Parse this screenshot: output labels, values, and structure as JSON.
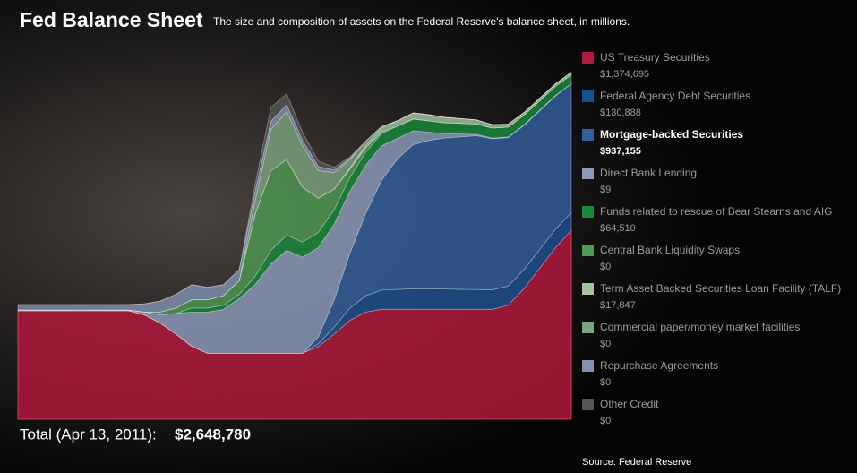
{
  "chart_data": {
    "type": "stacked_area",
    "title": "Fed Balance Sheet",
    "subtitle": "The size and composition of assets on the Federal Reserve's balance sheet, in millions.",
    "total_label": "Total (Apr 13, 2011):",
    "total": "$2,648,780",
    "source": "Source: Federal Reserve",
    "ylim": [
      0,
      2700000
    ],
    "highlight_index": 2,
    "categories": [
      null,
      null,
      null,
      null,
      null,
      null,
      null,
      null,
      null,
      null,
      null,
      null,
      null,
      null,
      null,
      null,
      null,
      null,
      null,
      null,
      null,
      null,
      null,
      null,
      null,
      null,
      null,
      null,
      null,
      null,
      null,
      null,
      null,
      null,
      null,
      null
    ],
    "series": [
      {
        "name": "US Treasury Securities",
        "value_label": "$1,374,695",
        "color": "#b3193c",
        "values": [
          790000,
          790000,
          790000,
          790000,
          790000,
          790000,
          790000,
          790000,
          760000,
          700000,
          620000,
          530000,
          480000,
          480000,
          480000,
          480000,
          480000,
          480000,
          480000,
          530000,
          620000,
          720000,
          780000,
          800000,
          800000,
          800000,
          800000,
          800000,
          800000,
          800000,
          800000,
          830000,
          950000,
          1100000,
          1250000,
          1374695
        ]
      },
      {
        "name": "Federal Agency Debt Securities",
        "value_label": "$130,888",
        "color": "#1d4f90",
        "values": [
          0,
          0,
          0,
          0,
          0,
          0,
          0,
          0,
          0,
          0,
          0,
          0,
          0,
          0,
          0,
          0,
          0,
          0,
          0,
          20000,
          50000,
          90000,
          120000,
          140000,
          145000,
          150000,
          150000,
          148000,
          146000,
          144000,
          142000,
          140000,
          138000,
          136000,
          133000,
          130888
        ]
      },
      {
        "name": "Mortgage-backed Securities",
        "value_label": "$937,155",
        "color": "#335f9c",
        "values": [
          0,
          0,
          0,
          0,
          0,
          0,
          0,
          0,
          0,
          0,
          0,
          0,
          0,
          0,
          0,
          0,
          0,
          0,
          0,
          50000,
          200000,
          400000,
          600000,
          800000,
          950000,
          1050000,
          1080000,
          1100000,
          1110000,
          1120000,
          1100000,
          1080000,
          1050000,
          1010000,
          970000,
          937155
        ]
      },
      {
        "name": "Direct Bank Lending",
        "value_label": "$9",
        "color": "#8c9bbb",
        "values": [
          5000,
          5000,
          5000,
          5000,
          5000,
          5000,
          5000,
          5000,
          20000,
          60000,
          150000,
          250000,
          300000,
          320000,
          400000,
          500000,
          650000,
          750000,
          700000,
          650000,
          550000,
          450000,
          350000,
          250000,
          150000,
          100000,
          60000,
          30000,
          20000,
          10000,
          5000,
          5000,
          5000,
          5000,
          5000,
          9
        ]
      },
      {
        "name": "Funds related to rescue of Bear Stearns and AIG",
        "value_label": "$64,510",
        "color": "#178a3c",
        "values": [
          0,
          0,
          0,
          0,
          0,
          0,
          0,
          0,
          0,
          0,
          0,
          30000,
          30000,
          30000,
          30000,
          60000,
          100000,
          110000,
          110000,
          110000,
          105000,
          100000,
          95000,
          90000,
          88000,
          85000,
          82000,
          80000,
          78000,
          75000,
          73000,
          71000,
          69000,
          67000,
          66000,
          64510
        ]
      },
      {
        "name": "Central Bank Liquidity Swaps",
        "value_label": "$0",
        "color": "#4f9a52",
        "values": [
          0,
          0,
          0,
          0,
          0,
          0,
          0,
          0,
          0,
          20000,
          40000,
          60000,
          60000,
          70000,
          100000,
          450000,
          580000,
          550000,
          400000,
          250000,
          150000,
          60000,
          30000,
          10000,
          0,
          0,
          0,
          0,
          0,
          0,
          0,
          0,
          0,
          0,
          0,
          0
        ]
      },
      {
        "name": "Term Asset Backed Securities Loan Facility (TALF)",
        "value_label": "$17,847",
        "color": "#a3c49e",
        "values": [
          0,
          0,
          0,
          0,
          0,
          0,
          0,
          0,
          0,
          0,
          0,
          0,
          0,
          0,
          0,
          0,
          0,
          0,
          0,
          0,
          0,
          10000,
          20000,
          30000,
          40000,
          45000,
          45000,
          40000,
          35000,
          30000,
          25000,
          22000,
          20000,
          19000,
          18000,
          17847
        ]
      },
      {
        "name": "Commercial paper/money market facilities",
        "value_label": "$0",
        "color": "#7ba47c",
        "values": [
          0,
          0,
          0,
          0,
          0,
          0,
          0,
          0,
          0,
          0,
          0,
          0,
          0,
          0,
          0,
          100000,
          300000,
          350000,
          300000,
          200000,
          120000,
          60000,
          30000,
          10000,
          0,
          0,
          0,
          0,
          0,
          0,
          0,
          0,
          0,
          0,
          0,
          0
        ]
      },
      {
        "name": "Repurchase Agreements",
        "value_label": "$0",
        "color": "#8190b3",
        "values": [
          40000,
          40000,
          40000,
          40000,
          40000,
          40000,
          40000,
          40000,
          60000,
          80000,
          100000,
          110000,
          90000,
          80000,
          80000,
          70000,
          60000,
          50000,
          40000,
          30000,
          20000,
          10000,
          0,
          0,
          0,
          0,
          0,
          0,
          0,
          0,
          0,
          0,
          0,
          0,
          0,
          0
        ]
      },
      {
        "name": "Other Credit",
        "value_label": "$0",
        "color": "#555555",
        "values": [
          0,
          0,
          0,
          0,
          0,
          0,
          0,
          0,
          0,
          0,
          0,
          0,
          0,
          0,
          0,
          50000,
          100000,
          80000,
          60000,
          40000,
          20000,
          10000,
          0,
          0,
          0,
          0,
          0,
          0,
          0,
          0,
          0,
          0,
          0,
          0,
          0,
          0
        ]
      }
    ]
  }
}
